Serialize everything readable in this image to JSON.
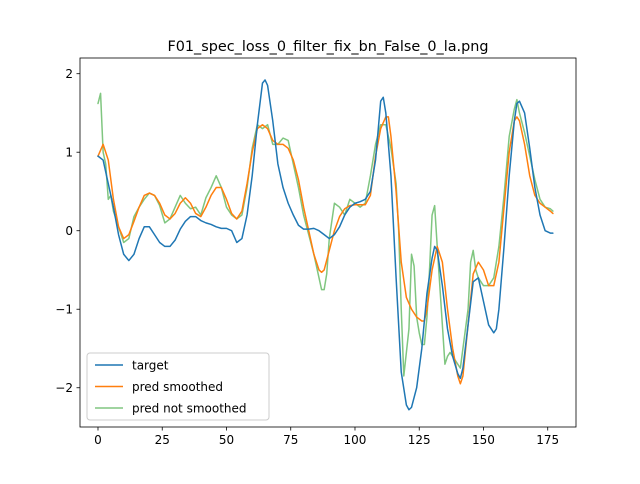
{
  "chart_data": {
    "type": "line",
    "title": "F01_spec_loss_0_filter_fix_bn_False_0_la.png",
    "xlabel": "",
    "ylabel": "",
    "xlim": [
      -7,
      186
    ],
    "ylim": [
      -2.5,
      2.2
    ],
    "xticks": [
      0,
      25,
      50,
      75,
      100,
      125,
      150,
      175
    ],
    "yticks": [
      -2,
      -1,
      0,
      1,
      2
    ],
    "xtick_labels": [
      "0",
      "25",
      "50",
      "75",
      "100",
      "125",
      "150",
      "175"
    ],
    "ytick_labels": [
      "−2",
      "−1",
      "0",
      "1",
      "2"
    ],
    "grid": false,
    "legend_position": "lower-left",
    "series": [
      {
        "name": "target",
        "color": "#1f77b4",
        "points": [
          [
            0,
            0.95
          ],
          [
            2,
            0.9
          ],
          [
            4,
            0.6
          ],
          [
            6,
            0.3
          ],
          [
            8,
            -0.05
          ],
          [
            10,
            -0.3
          ],
          [
            12,
            -0.38
          ],
          [
            14,
            -0.3
          ],
          [
            16,
            -0.1
          ],
          [
            18,
            0.05
          ],
          [
            20,
            0.05
          ],
          [
            22,
            -0.05
          ],
          [
            24,
            -0.15
          ],
          [
            26,
            -0.2
          ],
          [
            28,
            -0.2
          ],
          [
            30,
            -0.12
          ],
          [
            32,
            0.02
          ],
          [
            34,
            0.12
          ],
          [
            36,
            0.18
          ],
          [
            38,
            0.18
          ],
          [
            40,
            0.13
          ],
          [
            42,
            0.1
          ],
          [
            44,
            0.08
          ],
          [
            46,
            0.05
          ],
          [
            48,
            0.03
          ],
          [
            50,
            0.03
          ],
          [
            52,
            0.0
          ],
          [
            54,
            -0.15
          ],
          [
            56,
            -0.1
          ],
          [
            58,
            0.2
          ],
          [
            60,
            0.7
          ],
          [
            62,
            1.35
          ],
          [
            64,
            1.88
          ],
          [
            65,
            1.92
          ],
          [
            66,
            1.85
          ],
          [
            68,
            1.4
          ],
          [
            70,
            0.85
          ],
          [
            72,
            0.55
          ],
          [
            74,
            0.35
          ],
          [
            76,
            0.2
          ],
          [
            78,
            0.07
          ],
          [
            80,
            0.02
          ],
          [
            82,
            0.02
          ],
          [
            84,
            0.03
          ],
          [
            86,
            0.0
          ],
          [
            88,
            -0.05
          ],
          [
            90,
            -0.1
          ],
          [
            92,
            -0.05
          ],
          [
            94,
            0.05
          ],
          [
            96,
            0.2
          ],
          [
            98,
            0.3
          ],
          [
            100,
            0.35
          ],
          [
            102,
            0.37
          ],
          [
            104,
            0.4
          ],
          [
            106,
            0.5
          ],
          [
            108,
            0.9
          ],
          [
            110,
            1.65
          ],
          [
            111,
            1.7
          ],
          [
            112,
            1.5
          ],
          [
            114,
            0.7
          ],
          [
            116,
            -0.6
          ],
          [
            118,
            -1.8
          ],
          [
            120,
            -2.22
          ],
          [
            121,
            -2.28
          ],
          [
            122,
            -2.25
          ],
          [
            124,
            -2.0
          ],
          [
            126,
            -1.5
          ],
          [
            128,
            -0.8
          ],
          [
            130,
            -0.35
          ],
          [
            131,
            -0.2
          ],
          [
            132,
            -0.25
          ],
          [
            134,
            -0.7
          ],
          [
            136,
            -1.25
          ],
          [
            138,
            -1.6
          ],
          [
            140,
            -1.82
          ],
          [
            141,
            -1.88
          ],
          [
            142,
            -1.75
          ],
          [
            144,
            -1.2
          ],
          [
            146,
            -0.65
          ],
          [
            148,
            -0.6
          ],
          [
            150,
            -0.9
          ],
          [
            152,
            -1.2
          ],
          [
            154,
            -1.3
          ],
          [
            155,
            -1.25
          ],
          [
            156,
            -1.0
          ],
          [
            158,
            -0.2
          ],
          [
            160,
            0.7
          ],
          [
            162,
            1.4
          ],
          [
            163,
            1.62
          ],
          [
            164,
            1.65
          ],
          [
            166,
            1.5
          ],
          [
            168,
            1.05
          ],
          [
            170,
            0.55
          ],
          [
            172,
            0.2
          ],
          [
            174,
            0.0
          ],
          [
            176,
            -0.03
          ],
          [
            177,
            -0.03
          ]
        ]
      },
      {
        "name": "pred smoothed",
        "color": "#ff7f0e",
        "points": [
          [
            0,
            0.95
          ],
          [
            2,
            1.1
          ],
          [
            4,
            0.9
          ],
          [
            6,
            0.4
          ],
          [
            8,
            0.05
          ],
          [
            10,
            -0.1
          ],
          [
            12,
            -0.05
          ],
          [
            14,
            0.12
          ],
          [
            16,
            0.3
          ],
          [
            18,
            0.45
          ],
          [
            20,
            0.48
          ],
          [
            22,
            0.45
          ],
          [
            24,
            0.35
          ],
          [
            26,
            0.2
          ],
          [
            28,
            0.15
          ],
          [
            30,
            0.22
          ],
          [
            32,
            0.35
          ],
          [
            34,
            0.42
          ],
          [
            36,
            0.35
          ],
          [
            38,
            0.22
          ],
          [
            40,
            0.18
          ],
          [
            42,
            0.3
          ],
          [
            44,
            0.45
          ],
          [
            46,
            0.55
          ],
          [
            48,
            0.55
          ],
          [
            50,
            0.4
          ],
          [
            52,
            0.22
          ],
          [
            54,
            0.15
          ],
          [
            56,
            0.25
          ],
          [
            58,
            0.6
          ],
          [
            60,
            1.0
          ],
          [
            62,
            1.3
          ],
          [
            64,
            1.35
          ],
          [
            66,
            1.3
          ],
          [
            68,
            1.15
          ],
          [
            70,
            1.1
          ],
          [
            72,
            1.1
          ],
          [
            74,
            1.05
          ],
          [
            76,
            0.9
          ],
          [
            78,
            0.65
          ],
          [
            80,
            0.3
          ],
          [
            82,
            0.0
          ],
          [
            84,
            -0.3
          ],
          [
            86,
            -0.5
          ],
          [
            87,
            -0.53
          ],
          [
            88,
            -0.5
          ],
          [
            90,
            -0.25
          ],
          [
            92,
            0.0
          ],
          [
            94,
            0.18
          ],
          [
            96,
            0.28
          ],
          [
            98,
            0.32
          ],
          [
            100,
            0.33
          ],
          [
            102,
            0.33
          ],
          [
            104,
            0.33
          ],
          [
            106,
            0.45
          ],
          [
            108,
            0.95
          ],
          [
            110,
            1.3
          ],
          [
            112,
            1.45
          ],
          [
            113,
            1.45
          ],
          [
            114,
            1.2
          ],
          [
            116,
            0.5
          ],
          [
            118,
            -0.4
          ],
          [
            120,
            -0.85
          ],
          [
            122,
            -1.0
          ],
          [
            124,
            -1.1
          ],
          [
            126,
            -1.15
          ],
          [
            127,
            -1.15
          ],
          [
            128,
            -1.0
          ],
          [
            130,
            -0.5
          ],
          [
            132,
            -0.2
          ],
          [
            134,
            -0.4
          ],
          [
            136,
            -1.0
          ],
          [
            138,
            -1.5
          ],
          [
            140,
            -1.85
          ],
          [
            141,
            -1.95
          ],
          [
            142,
            -1.85
          ],
          [
            144,
            -1.2
          ],
          [
            146,
            -0.55
          ],
          [
            148,
            -0.4
          ],
          [
            150,
            -0.5
          ],
          [
            152,
            -0.7
          ],
          [
            154,
            -0.7
          ],
          [
            156,
            -0.4
          ],
          [
            158,
            0.3
          ],
          [
            160,
            1.0
          ],
          [
            162,
            1.4
          ],
          [
            163,
            1.45
          ],
          [
            164,
            1.4
          ],
          [
            166,
            1.1
          ],
          [
            168,
            0.7
          ],
          [
            170,
            0.45
          ],
          [
            172,
            0.35
          ],
          [
            174,
            0.3
          ],
          [
            176,
            0.25
          ],
          [
            177,
            0.22
          ]
        ]
      },
      {
        "name": "pred not smoothed",
        "color": "#2ca02c",
        "opacity": 0.6,
        "points": [
          [
            0,
            1.62
          ],
          [
            1,
            1.75
          ],
          [
            2,
            1.0
          ],
          [
            3,
            0.85
          ],
          [
            4,
            0.4
          ],
          [
            5,
            0.45
          ],
          [
            6,
            0.25
          ],
          [
            8,
            0.05
          ],
          [
            10,
            -0.15
          ],
          [
            12,
            -0.1
          ],
          [
            14,
            0.18
          ],
          [
            16,
            0.3
          ],
          [
            18,
            0.4
          ],
          [
            20,
            0.48
          ],
          [
            22,
            0.45
          ],
          [
            24,
            0.32
          ],
          [
            26,
            0.1
          ],
          [
            28,
            0.15
          ],
          [
            30,
            0.3
          ],
          [
            32,
            0.45
          ],
          [
            34,
            0.35
          ],
          [
            36,
            0.28
          ],
          [
            38,
            0.3
          ],
          [
            40,
            0.2
          ],
          [
            42,
            0.42
          ],
          [
            44,
            0.55
          ],
          [
            46,
            0.7
          ],
          [
            48,
            0.55
          ],
          [
            50,
            0.3
          ],
          [
            52,
            0.2
          ],
          [
            54,
            0.15
          ],
          [
            56,
            0.2
          ],
          [
            58,
            0.55
          ],
          [
            60,
            1.05
          ],
          [
            62,
            1.35
          ],
          [
            64,
            1.3
          ],
          [
            66,
            1.35
          ],
          [
            68,
            1.1
          ],
          [
            70,
            1.1
          ],
          [
            72,
            1.18
          ],
          [
            74,
            1.15
          ],
          [
            76,
            0.85
          ],
          [
            78,
            0.55
          ],
          [
            80,
            0.2
          ],
          [
            82,
            -0.05
          ],
          [
            84,
            -0.3
          ],
          [
            86,
            -0.6
          ],
          [
            87,
            -0.75
          ],
          [
            88,
            -0.75
          ],
          [
            89,
            -0.55
          ],
          [
            90,
            -0.1
          ],
          [
            92,
            0.35
          ],
          [
            94,
            0.3
          ],
          [
            96,
            0.2
          ],
          [
            98,
            0.4
          ],
          [
            100,
            0.35
          ],
          [
            102,
            0.3
          ],
          [
            104,
            0.35
          ],
          [
            106,
            0.7
          ],
          [
            108,
            1.1
          ],
          [
            110,
            1.35
          ],
          [
            112,
            1.35
          ],
          [
            113,
            1.2
          ],
          [
            114,
            1.05
          ],
          [
            116,
            0.6
          ],
          [
            117,
            0.0
          ],
          [
            118,
            -1.0
          ],
          [
            119,
            -1.85
          ],
          [
            120,
            -1.55
          ],
          [
            121,
            -1.25
          ],
          [
            122,
            -0.3
          ],
          [
            123,
            -0.45
          ],
          [
            124,
            -1.1
          ],
          [
            125,
            -1.3
          ],
          [
            126,
            -1.45
          ],
          [
            127,
            -1.45
          ],
          [
            128,
            -1.1
          ],
          [
            129,
            -0.5
          ],
          [
            130,
            0.2
          ],
          [
            131,
            0.32
          ],
          [
            132,
            -0.2
          ],
          [
            134,
            -1.2
          ],
          [
            135,
            -1.7
          ],
          [
            136,
            -1.6
          ],
          [
            137,
            -1.55
          ],
          [
            138,
            -1.6
          ],
          [
            140,
            -1.7
          ],
          [
            141,
            -1.75
          ],
          [
            142,
            -1.5
          ],
          [
            144,
            -1.0
          ],
          [
            145,
            -0.4
          ],
          [
            146,
            -0.25
          ],
          [
            147,
            -0.5
          ],
          [
            148,
            -0.6
          ],
          [
            150,
            -0.7
          ],
          [
            152,
            -0.7
          ],
          [
            154,
            -0.6
          ],
          [
            156,
            -0.2
          ],
          [
            158,
            0.45
          ],
          [
            160,
            1.2
          ],
          [
            162,
            1.55
          ],
          [
            163,
            1.67
          ],
          [
            164,
            1.5
          ],
          [
            166,
            1.25
          ],
          [
            168,
            0.95
          ],
          [
            170,
            0.65
          ],
          [
            172,
            0.4
          ],
          [
            174,
            0.3
          ],
          [
            176,
            0.28
          ],
          [
            177,
            0.25
          ]
        ]
      }
    ]
  }
}
